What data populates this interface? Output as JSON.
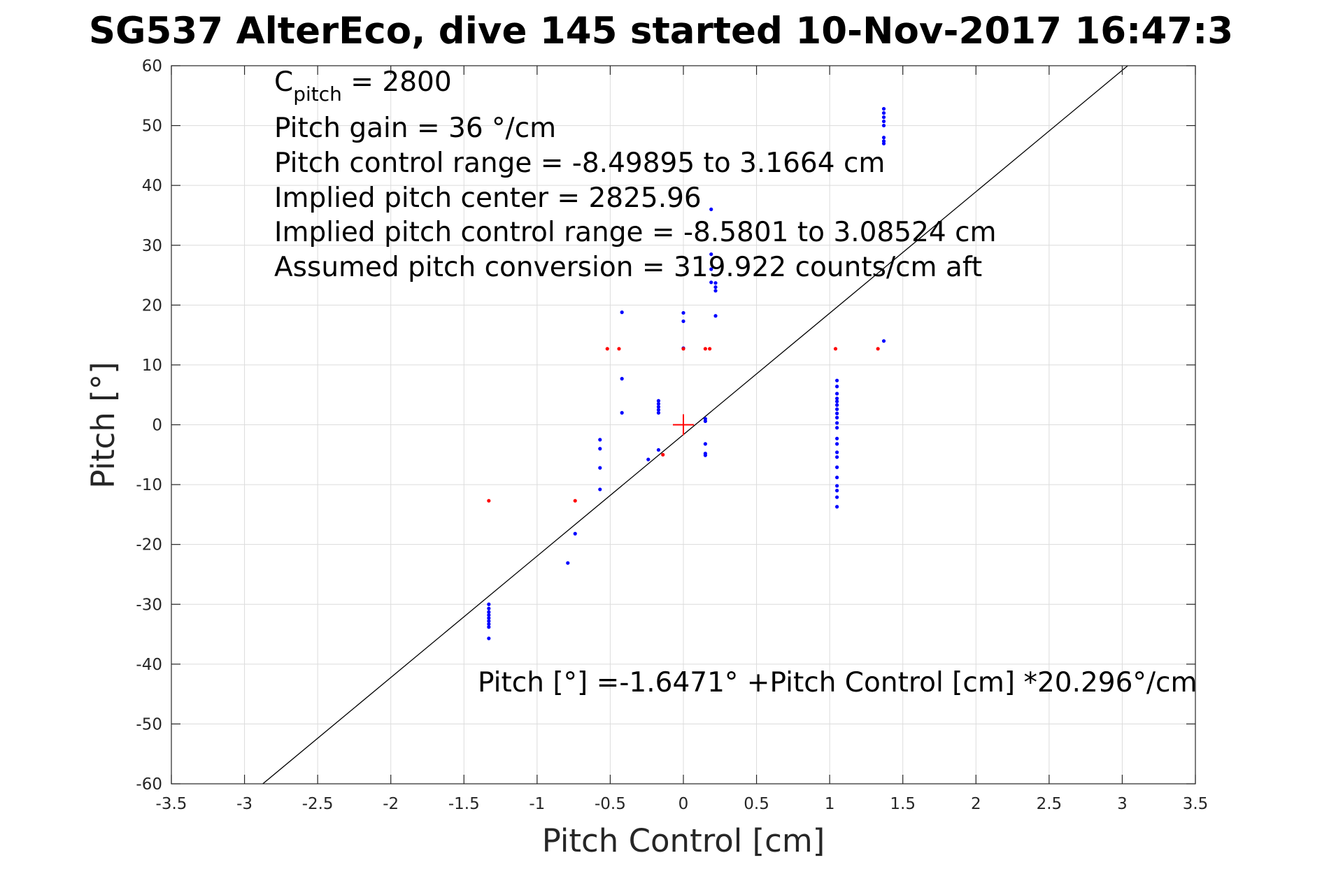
{
  "chart_data": {
    "type": "scatter",
    "title": "SG537 AlterEco, dive 145 started 10-Nov-2017 16:47:3",
    "xlabel": "Pitch Control [cm]",
    "ylabel": "Pitch [°]",
    "xlim": [
      -3.5,
      3.5
    ],
    "ylim": [
      -60,
      60
    ],
    "xticks": [
      -3.5,
      -3,
      -2.5,
      -2,
      -1.5,
      -1,
      -0.5,
      0,
      0.5,
      1,
      1.5,
      2,
      2.5,
      3,
      3.5
    ],
    "yticks": [
      -60,
      -50,
      -40,
      -30,
      -20,
      -10,
      0,
      10,
      20,
      30,
      40,
      50,
      60
    ],
    "xtick_labels": [
      "-3.5",
      "-3",
      "-2.5",
      "-2",
      "-1.5",
      "-1",
      "-0.5",
      "0",
      "0.5",
      "1",
      "1.5",
      "2",
      "2.5",
      "3",
      "3.5"
    ],
    "ytick_labels": [
      "-60",
      "-50",
      "-40",
      "-30",
      "-20",
      "-10",
      "0",
      "10",
      "20",
      "30",
      "40",
      "50",
      "60"
    ],
    "grid": true,
    "annotations": {
      "cpitch_base": "C",
      "cpitch_sub": "pitch",
      "cpitch_rest": " = 2800",
      "pitch_gain": "Pitch gain = 36 °/cm",
      "pitch_control_range": "Pitch control range = -8.49895 to 3.1664 cm",
      "implied_pitch_center": "Implied pitch center = 2825.96",
      "implied_control_range": "Implied pitch control range = -8.5801 to 3.08524 cm",
      "assumed_conversion": "Assumed pitch conversion = 319.922 counts/cm aft",
      "fit_equation": "Pitch [°] =-1.6471° +Pitch Control [cm] *20.296°/cm"
    },
    "fit_line": {
      "intercept": -1.6471,
      "slope": 20.296,
      "color": "#000000"
    },
    "center_marker": {
      "x": 0,
      "y": 0,
      "color": "#ff0000"
    },
    "series": [
      {
        "color": "#0000ff",
        "points": [
          [
            -1.33,
            -30
          ],
          [
            -1.33,
            -30.7
          ],
          [
            -1.33,
            -31.3
          ],
          [
            -1.33,
            -31.8
          ],
          [
            -1.33,
            -32.3
          ],
          [
            -1.33,
            -32.8
          ],
          [
            -1.33,
            -33.3
          ],
          [
            -1.33,
            -33.8
          ],
          [
            -1.33,
            -35.7
          ],
          [
            -0.79,
            -23.1
          ],
          [
            -0.74,
            -18.2
          ],
          [
            -0.57,
            -2.5
          ],
          [
            -0.57,
            -4
          ],
          [
            -0.57,
            -7.2
          ],
          [
            -0.57,
            -10.8
          ],
          [
            -0.42,
            18.8
          ],
          [
            -0.42,
            7.7
          ],
          [
            -0.42,
            2
          ],
          [
            -0.17,
            4
          ],
          [
            -0.17,
            3.5
          ],
          [
            -0.17,
            3
          ],
          [
            -0.17,
            2.5
          ],
          [
            -0.17,
            2
          ],
          [
            -0.17,
            -4.2
          ],
          [
            -0.24,
            -5.8
          ],
          [
            0,
            18.7
          ],
          [
            0,
            17.3
          ],
          [
            0,
            12.8
          ],
          [
            0.15,
            1
          ],
          [
            0.15,
            0.6
          ],
          [
            0.15,
            -3.2
          ],
          [
            0.15,
            -4.8
          ],
          [
            0.15,
            -5.1
          ],
          [
            0.19,
            36
          ],
          [
            0.19,
            28.5
          ],
          [
            0.19,
            26
          ],
          [
            0.19,
            23.8
          ],
          [
            0.22,
            23.7
          ],
          [
            0.22,
            23
          ],
          [
            0.22,
            22.4
          ],
          [
            0.22,
            18.2
          ],
          [
            1.05,
            7.4
          ],
          [
            1.05,
            6.4
          ],
          [
            1.05,
            5.2
          ],
          [
            1.05,
            4.4
          ],
          [
            1.05,
            3.9
          ],
          [
            1.05,
            3.3
          ],
          [
            1.05,
            2.6
          ],
          [
            1.05,
            1.9
          ],
          [
            1.05,
            1.2
          ],
          [
            1.05,
            0.3
          ],
          [
            1.05,
            -0.5
          ],
          [
            1.05,
            -2.3
          ],
          [
            1.05,
            -3.2
          ],
          [
            1.05,
            -4.6
          ],
          [
            1.05,
            -5.4
          ],
          [
            1.05,
            -7.1
          ],
          [
            1.05,
            -8.8
          ],
          [
            1.05,
            -10.2
          ],
          [
            1.05,
            -11
          ],
          [
            1.05,
            -12.1
          ],
          [
            1.05,
            -13.7
          ],
          [
            1.37,
            52.8
          ],
          [
            1.37,
            52.1
          ],
          [
            1.37,
            51.4
          ],
          [
            1.37,
            50.7
          ],
          [
            1.37,
            50
          ],
          [
            1.37,
            48
          ],
          [
            1.37,
            47.4
          ],
          [
            1.37,
            47
          ],
          [
            1.37,
            14
          ]
        ]
      },
      {
        "color": "#ff0000",
        "points": [
          [
            -1.33,
            -12.7
          ],
          [
            -0.74,
            -12.7
          ],
          [
            -0.52,
            12.7
          ],
          [
            -0.44,
            12.7
          ],
          [
            -0.14,
            -5
          ],
          [
            0,
            12.7
          ],
          [
            0.15,
            12.7
          ],
          [
            0.18,
            12.7
          ],
          [
            1.04,
            12.7
          ],
          [
            1.33,
            12.7
          ]
        ]
      }
    ]
  }
}
